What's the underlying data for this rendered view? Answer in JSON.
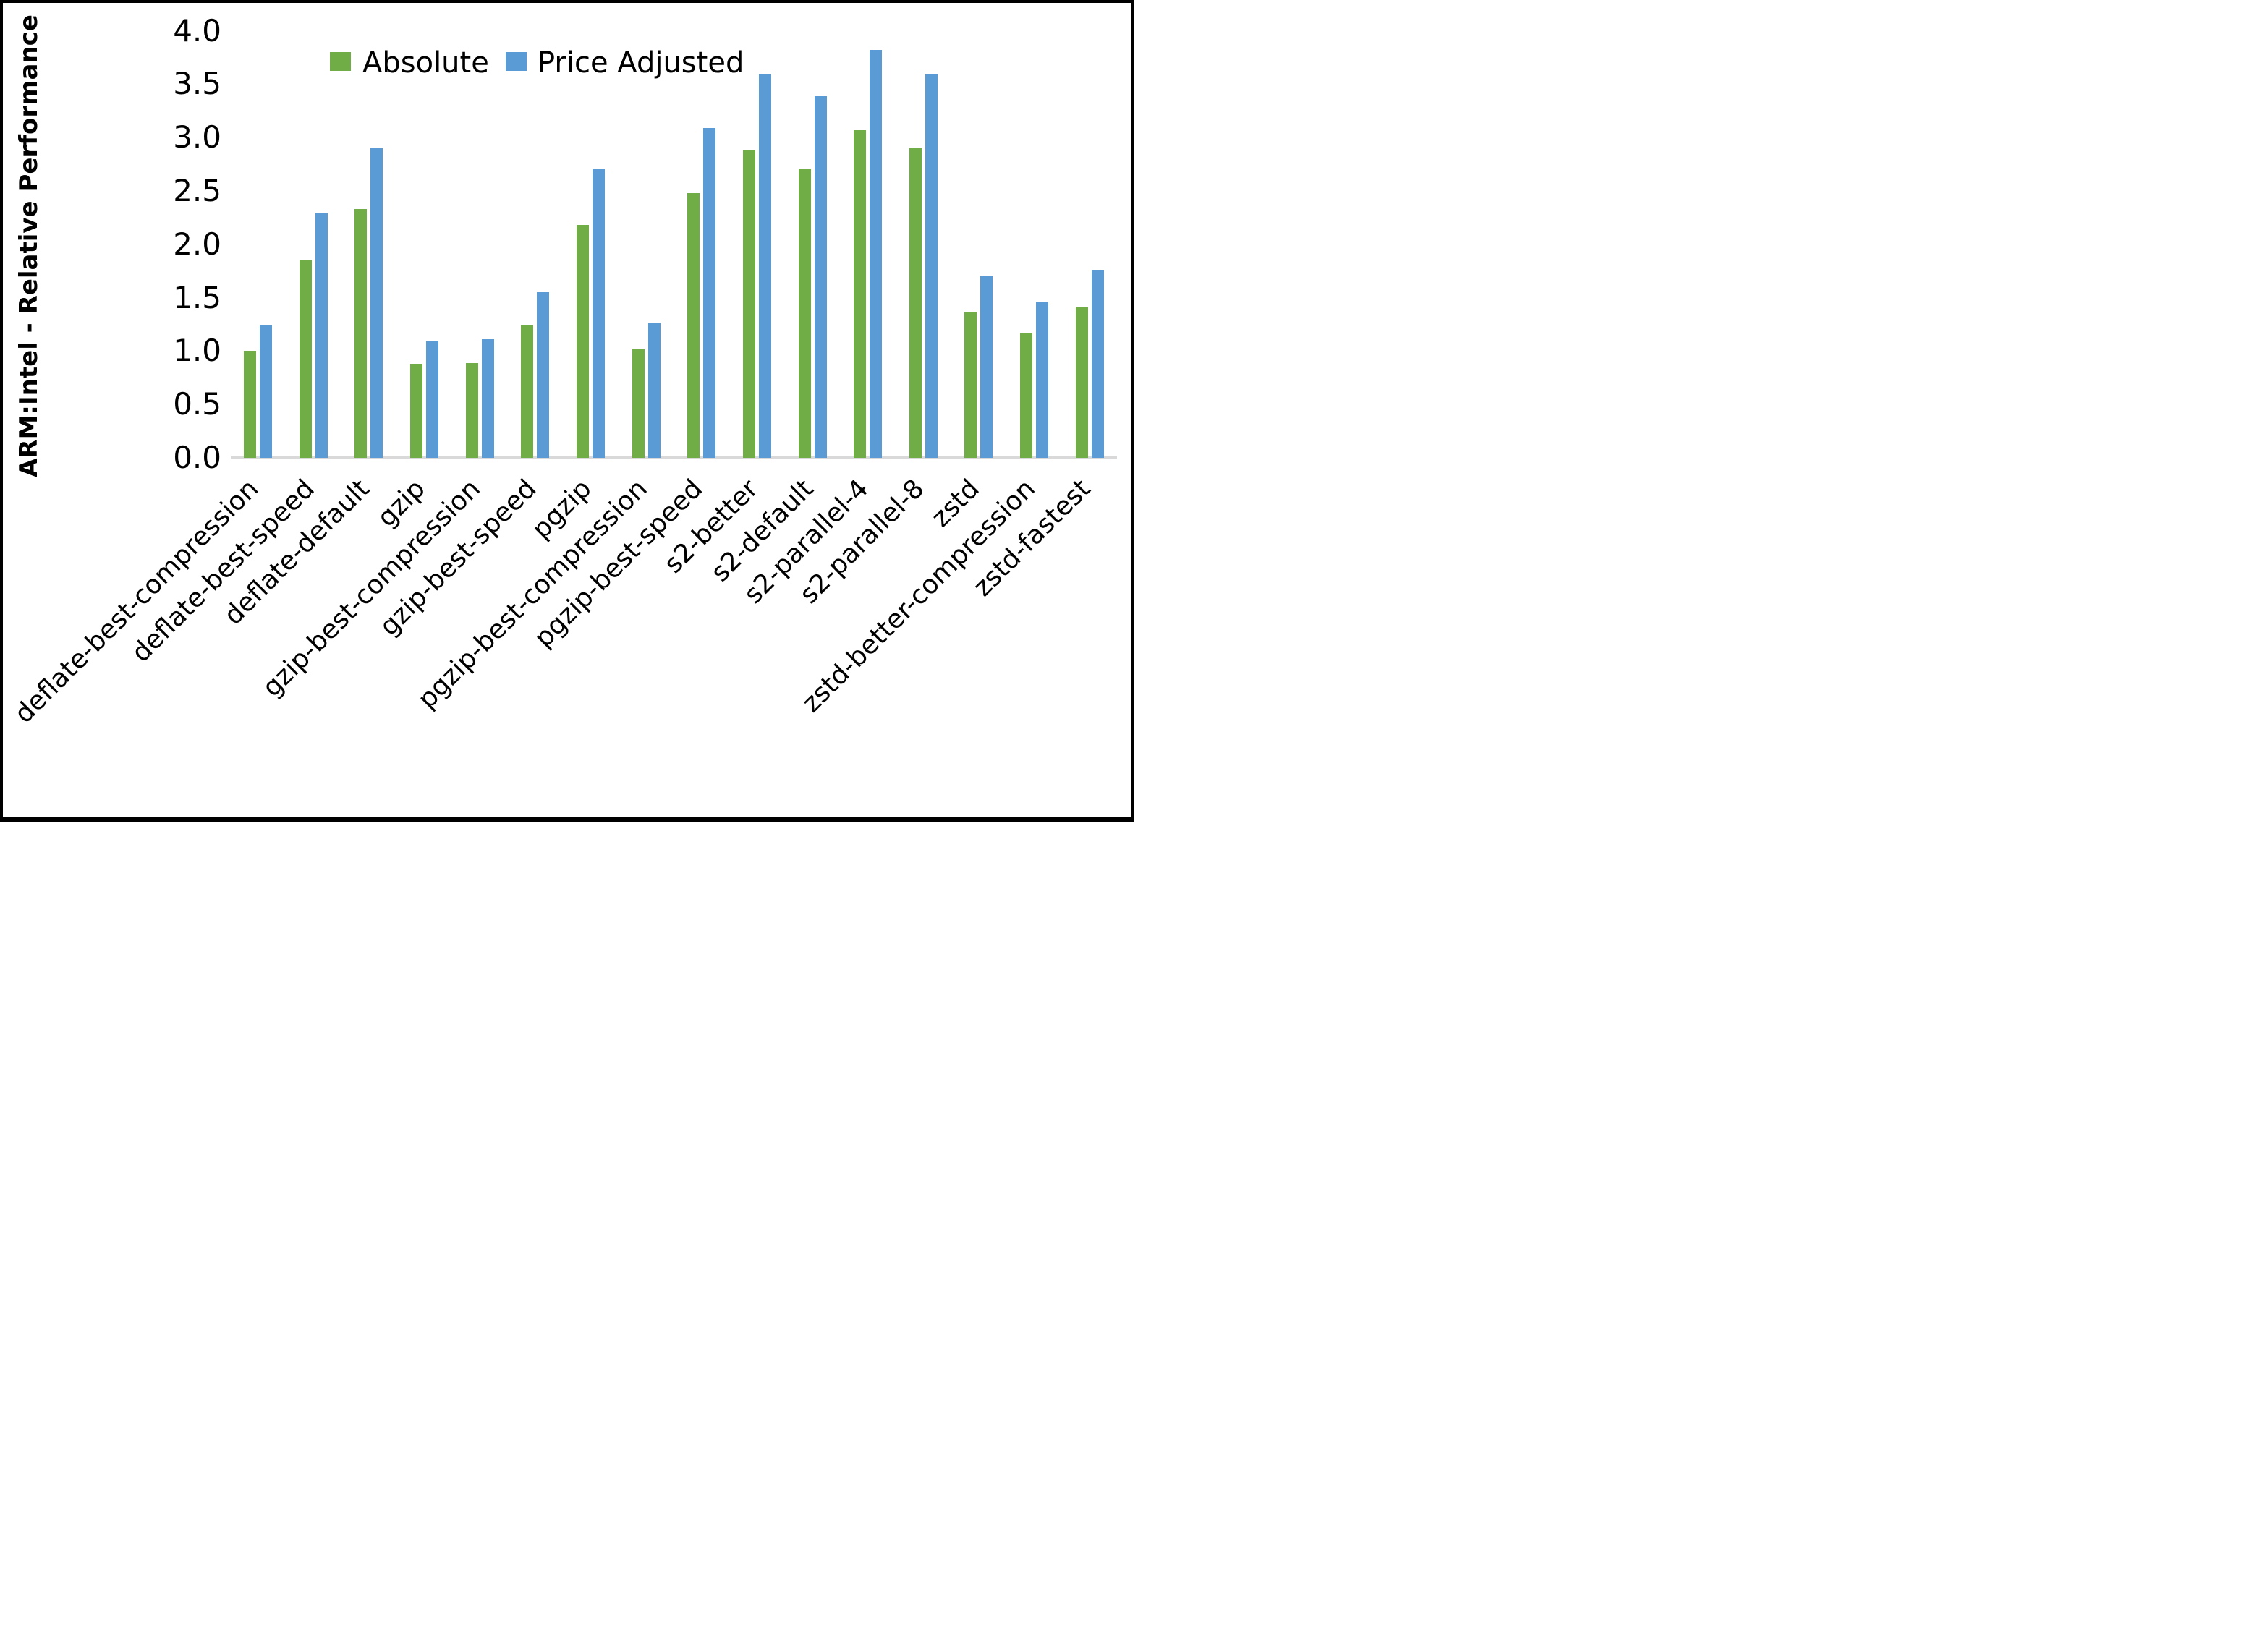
{
  "chart_data": {
    "type": "bar",
    "title": "",
    "xlabel": "",
    "ylabel": "ARM:Intel - Relative Performance",
    "ylim": [
      0.0,
      4.0
    ],
    "ytick_step": 0.5,
    "yticks": [
      "0.0",
      "0.5",
      "1.0",
      "1.5",
      "2.0",
      "2.5",
      "3.0",
      "3.5",
      "4.0"
    ],
    "grid": false,
    "legend_position": "top-center",
    "axis_line_color": "#D9D9D9",
    "text_color": "#000000",
    "categories": [
      "deflate-best-compression",
      "deflate-best-speed",
      "deflate-default",
      "gzip",
      "gzip-best-compression",
      "gzip-best-speed",
      "pgzip",
      "pgzip-best-compression",
      "pgzip-best-speed",
      "s2-better",
      "s2-default",
      "s2-parallel-4",
      "s2-parallel-8",
      "zstd",
      "zstd-better-compression",
      "zstd-fastest"
    ],
    "series": [
      {
        "name": "Absolute",
        "color": "#70AD47",
        "values": [
          1.0,
          1.85,
          2.33,
          0.88,
          0.89,
          1.24,
          2.18,
          1.02,
          2.48,
          2.88,
          2.71,
          3.07,
          2.9,
          1.37,
          1.17,
          1.41
        ]
      },
      {
        "name": "Price Adjusted",
        "color": "#5B9BD5",
        "values": [
          1.25,
          2.3,
          2.9,
          1.09,
          1.11,
          1.55,
          2.71,
          1.27,
          3.09,
          3.59,
          3.39,
          3.82,
          3.59,
          1.71,
          1.46,
          1.76
        ]
      }
    ]
  }
}
